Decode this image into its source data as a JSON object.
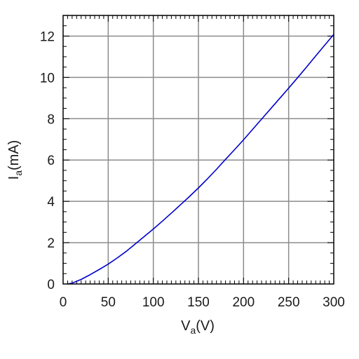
{
  "chart_data": {
    "type": "line",
    "xlabel": {
      "main": "V",
      "sub": "a",
      "unit": "(V)"
    },
    "ylabel": {
      "main": "I",
      "sub": "a",
      "unit": "(mA)"
    },
    "xlim": [
      0,
      300
    ],
    "ylim": [
      0,
      13
    ],
    "x_ticks": [
      0,
      50,
      100,
      150,
      200,
      250,
      300
    ],
    "x_tick_labels": [
      "0",
      "50",
      "100",
      "150",
      "200",
      "250",
      "300"
    ],
    "y_ticks": [
      0,
      2,
      4,
      6,
      8,
      10,
      12
    ],
    "y_tick_labels": [
      "0",
      "2",
      "4",
      "6",
      "8",
      "10",
      "12"
    ],
    "grid": true,
    "series": [
      {
        "color": "#0000cc",
        "x": [
          5,
          10,
          20,
          30,
          40,
          50,
          60,
          70,
          80,
          90,
          100,
          110,
          120,
          130,
          140,
          150,
          160,
          170,
          180,
          190,
          200,
          210,
          220,
          230,
          240,
          250,
          260,
          270,
          280,
          290,
          300
        ],
        "y": [
          0.0,
          0.04,
          0.22,
          0.45,
          0.7,
          0.96,
          1.26,
          1.58,
          1.94,
          2.3,
          2.66,
          3.04,
          3.43,
          3.83,
          4.23,
          4.65,
          5.09,
          5.55,
          6.03,
          6.5,
          6.98,
          7.48,
          7.98,
          8.48,
          8.98,
          9.48,
          9.99,
          10.51,
          11.04,
          11.56,
          12.08
        ]
      }
    ]
  }
}
